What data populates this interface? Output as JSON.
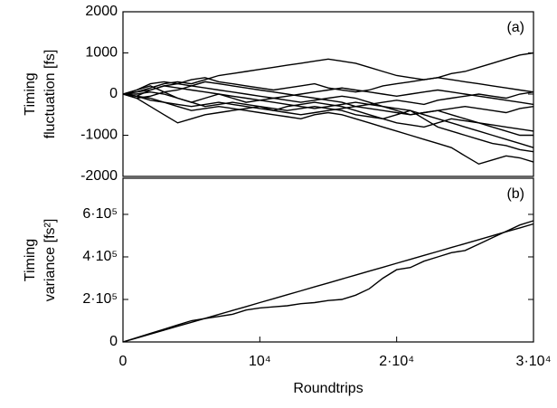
{
  "chart_data": [
    {
      "type": "line",
      "annotation": "(a)",
      "ylabel": [
        "Timing",
        "fluctuation [fs]"
      ],
      "x": [
        0,
        1000,
        2000,
        3000,
        4000,
        5000,
        6000,
        7000,
        8000,
        9000,
        10000,
        11000,
        12000,
        13000,
        14000,
        15000,
        16000,
        17000,
        18000,
        19000,
        20000,
        21000,
        22000,
        23000,
        24000,
        25000,
        26000,
        27000,
        28000,
        29000,
        30000
      ],
      "xlim": [
        0,
        30000
      ],
      "ylim": [
        -2000,
        2000
      ],
      "yticks": [
        -2000,
        -1000,
        0,
        1000,
        2000
      ],
      "series": [
        {
          "color": "#000",
          "values": [
            0,
            50,
            150,
            250,
            300,
            250,
            350,
            450,
            500,
            550,
            600,
            650,
            700,
            750,
            800,
            850,
            800,
            750,
            650,
            550,
            450,
            400,
            350,
            400,
            500,
            550,
            650,
            750,
            850,
            950,
            1000
          ]
        },
        {
          "color": "#000",
          "values": [
            0,
            -50,
            100,
            200,
            250,
            350,
            400,
            300,
            250,
            200,
            150,
            100,
            150,
            200,
            250,
            150,
            100,
            50,
            100,
            200,
            250,
            300,
            350,
            400,
            350,
            300,
            250,
            200,
            150,
            100,
            50
          ]
        },
        {
          "color": "#000",
          "values": [
            0,
            100,
            200,
            50,
            -100,
            -200,
            -100,
            0,
            -100,
            -200,
            -150,
            -100,
            -50,
            0,
            50,
            100,
            150,
            100,
            50,
            0,
            -50,
            0,
            50,
            100,
            50,
            0,
            -50,
            -100,
            -150,
            -200,
            -250
          ]
        },
        {
          "color": "#000",
          "values": [
            0,
            -100,
            -300,
            -500,
            -700,
            -600,
            -500,
            -450,
            -400,
            -350,
            -300,
            -400,
            -450,
            -500,
            -450,
            -400,
            -350,
            -300,
            -350,
            -400,
            -450,
            -500,
            -450,
            -400,
            -350,
            -300,
            -350,
            -400,
            -450,
            -350,
            -300
          ]
        },
        {
          "color": "#000",
          "values": [
            0,
            -50,
            -100,
            -200,
            -250,
            -300,
            -250,
            -200,
            -250,
            -300,
            -350,
            -400,
            -300,
            -250,
            -200,
            -250,
            -300,
            -400,
            -500,
            -600,
            -700,
            -750,
            -800,
            -700,
            -600,
            -650,
            -700,
            -800,
            -900,
            -1000,
            -1000
          ]
        },
        {
          "color": "#000",
          "values": [
            0,
            0,
            50,
            0,
            -100,
            -200,
            -300,
            -250,
            -200,
            -250,
            -300,
            -350,
            -400,
            -350,
            -300,
            -350,
            -400,
            -500,
            -550,
            -600,
            -500,
            -400,
            -500,
            -600,
            -700,
            -800,
            -900,
            -1000,
            -1100,
            -1200,
            -1300
          ]
        },
        {
          "color": "#000",
          "values": [
            0,
            -50,
            -150,
            -200,
            -300,
            -400,
            -350,
            -300,
            -350,
            -400,
            -450,
            -500,
            -550,
            -600,
            -500,
            -450,
            -500,
            -600,
            -700,
            -800,
            -900,
            -1000,
            -1100,
            -1200,
            -1300,
            -1500,
            -1700,
            -1600,
            -1500,
            -1550,
            -1650
          ]
        },
        {
          "color": "#000",
          "values": [
            0,
            50,
            100,
            200,
            150,
            100,
            50,
            0,
            -50,
            -100,
            -150,
            -200,
            -250,
            -300,
            -350,
            -300,
            -250,
            -200,
            -250,
            -300,
            -350,
            -400,
            -600,
            -800,
            -900,
            -1000,
            -1100,
            -1200,
            -1250,
            -1350,
            -1400
          ]
        },
        {
          "color": "#000",
          "values": [
            0,
            100,
            250,
            300,
            250,
            200,
            150,
            100,
            50,
            0,
            -50,
            -100,
            -150,
            -200,
            -150,
            -100,
            -50,
            -100,
            -200,
            -300,
            -400,
            -500,
            -450,
            -400,
            -500,
            -600,
            -700,
            -750,
            -800,
            -850,
            -900
          ]
        },
        {
          "color": "#000",
          "values": [
            0,
            -100,
            -50,
            50,
            100,
            200,
            300,
            250,
            200,
            150,
            100,
            50,
            0,
            -50,
            -100,
            -150,
            -200,
            -300,
            -250,
            -200,
            -150,
            -200,
            -250,
            -150,
            -100,
            -50,
            0,
            -50,
            -100,
            0,
            50
          ]
        }
      ]
    },
    {
      "type": "line",
      "annotation": "(b)",
      "ylabel": [
        "Timing",
        "variance [fs²]"
      ],
      "xlabel": "Roundtrips",
      "x": [
        0,
        1000,
        2000,
        3000,
        4000,
        5000,
        6000,
        7000,
        8000,
        9000,
        10000,
        11000,
        12000,
        13000,
        14000,
        15000,
        16000,
        17000,
        18000,
        19000,
        20000,
        21000,
        22000,
        23000,
        24000,
        25000,
        26000,
        27000,
        28000,
        29000,
        30000
      ],
      "xlim": [
        0,
        30000
      ],
      "xticks": [
        0,
        {
          "value": 10000,
          "label": "10⁴"
        },
        {
          "value": 20000,
          "label": "2·10⁴"
        },
        {
          "value": 30000,
          "label": "3·10⁴"
        }
      ],
      "ylim": [
        0,
        770000
      ],
      "yticks": [
        0,
        {
          "value": 200000,
          "label": "2·10⁵"
        },
        {
          "value": 400000,
          "label": "4·10⁵"
        },
        {
          "value": 600000,
          "label": "6·10⁵"
        }
      ],
      "series": [
        {
          "color": "#000",
          "values": [
            0,
            20000,
            40000,
            60000,
            80000,
            100000,
            110000,
            120000,
            130000,
            150000,
            160000,
            165000,
            170000,
            180000,
            185000,
            195000,
            200000,
            220000,
            250000,
            300000,
            340000,
            350000,
            380000,
            400000,
            420000,
            430000,
            460000,
            490000,
            520000,
            550000,
            570000
          ]
        },
        {
          "color": "#000",
          "values": [
            0,
            18500,
            37000,
            55500,
            74000,
            92500,
            111000,
            129500,
            148000,
            166500,
            185000,
            203500,
            222000,
            240500,
            259000,
            277500,
            296000,
            314500,
            333000,
            351500,
            370000,
            388500,
            407000,
            425500,
            444000,
            462500,
            481000,
            499500,
            518000,
            536500,
            555000
          ]
        }
      ]
    }
  ]
}
